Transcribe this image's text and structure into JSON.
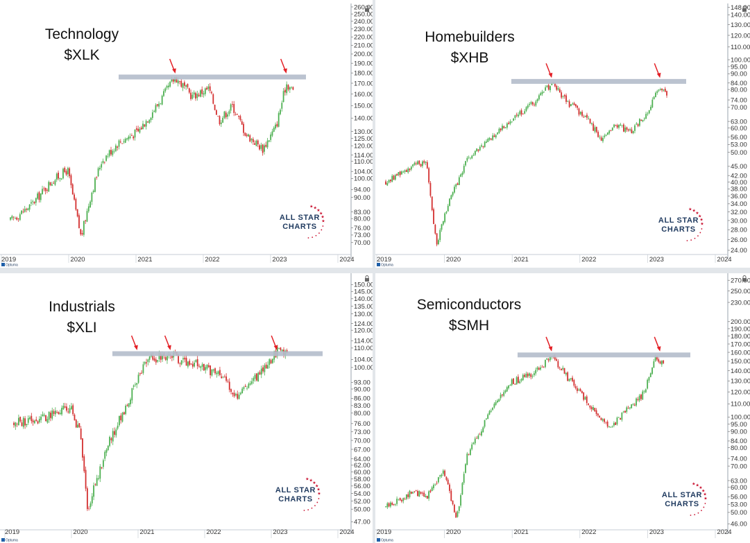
{
  "chart_data": [
    {
      "type": "candlestick",
      "title": "Technology",
      "subtitle": "$XLK",
      "x_ticks": [
        "2019",
        "2020",
        "2021",
        "2022",
        "2023",
        "2024"
      ],
      "y_scale": "log",
      "ylim": [
        66,
        262
      ],
      "y_ticks": [
        "260.00",
        "250.00",
        "240.00",
        "230.00",
        "220.00",
        "210.00",
        "200.00",
        "190.00",
        "180.00",
        "170.00",
        "160.00",
        "150.00",
        "140.00",
        "130.00",
        "125.00",
        "120.00",
        "114.00",
        "110.00",
        "104.00",
        "100.00",
        "94.00",
        "90.00",
        "83.00",
        "80.00",
        "76.00",
        "73.00",
        "70.00"
      ],
      "resistance_level": 176,
      "arrows_at": [
        2021.45,
        2023.1
      ],
      "approx_closes": {
        "x": [
          2019.0,
          2019.3,
          2019.6,
          2019.85,
          2020.05,
          2020.2,
          2020.35,
          2020.6,
          2020.9,
          2021.2,
          2021.45,
          2021.7,
          2021.95,
          2022.1,
          2022.3,
          2022.5,
          2022.75,
          2022.95,
          2023.1,
          2023.2
        ],
        "y": [
          79,
          86,
          98,
          105,
          72,
          92,
          110,
          122,
          130,
          152,
          176,
          158,
          165,
          138,
          150,
          128,
          118,
          134,
          170,
          163
        ]
      },
      "watermark": [
        "ALL STAR",
        "CHARTS"
      ],
      "source": "Optuma"
    },
    {
      "type": "candlestick",
      "title": "Homebuilders",
      "subtitle": "$XHB",
      "x_ticks": [
        "2019",
        "2020",
        "2021",
        "2022",
        "2023",
        "2024"
      ],
      "y_scale": "log",
      "ylim": [
        23.5,
        150
      ],
      "y_ticks": [
        "148.00",
        "140.00",
        "130.00",
        "120.00",
        "110.00",
        "100.00",
        "95.00",
        "90.00",
        "84.00",
        "80.00",
        "74.00",
        "70.00",
        "63.00",
        "60.00",
        "56.00",
        "53.00",
        "50.00",
        "45.00",
        "42.00",
        "40.00",
        "38.00",
        "36.00",
        "34.00",
        "32.00",
        "30.00",
        "28.00",
        "26.00",
        "24.00"
      ],
      "resistance_level": 85,
      "arrows_at": [
        2021.45,
        2023.05
      ],
      "approx_closes": {
        "x": [
          2019.0,
          2019.3,
          2019.6,
          2019.65,
          2019.75,
          2019.9,
          2020.2,
          2020.6,
          2020.9,
          2021.2,
          2021.45,
          2021.7,
          2021.95,
          2022.2,
          2022.4,
          2022.6,
          2022.85,
          2023.05,
          2023.15
        ],
        "y": [
          40,
          44,
          47,
          38,
          25,
          33,
          47,
          57,
          65,
          73,
          84,
          72,
          65,
          55,
          62,
          58,
          66,
          82,
          77
        ]
      },
      "watermark": [
        "ALL STAR",
        "CHARTS"
      ],
      "source": "Optuma"
    },
    {
      "type": "candlestick",
      "title": "Industrials",
      "subtitle": "$XLI",
      "x_ticks": [
        "2019",
        "2020",
        "2021",
        "2022",
        "2023",
        "2024"
      ],
      "y_scale": "log",
      "ylim": [
        45.5,
        157
      ],
      "y_ticks": [
        "150.00",
        "145.00",
        "140.00",
        "135.00",
        "130.00",
        "124.00",
        "120.00",
        "114.00",
        "110.00",
        "104.00",
        "100.00",
        "93.00",
        "90.00",
        "86.00",
        "83.00",
        "80.00",
        "76.00",
        "73.00",
        "70.00",
        "67.00",
        "64.00",
        "62.00",
        "60.00",
        "58.00",
        "56.00",
        "54.00",
        "52.00",
        "50.00",
        "47.00"
      ],
      "resistance_level": 107,
      "arrows_at": [
        2020.85,
        2021.35,
        2022.95
      ],
      "approx_closes": {
        "x": [
          2019.0,
          2019.4,
          2019.85,
          2020.0,
          2020.1,
          2020.4,
          2020.8,
          2021.0,
          2021.35,
          2021.8,
          2022.1,
          2022.35,
          2022.5,
          2022.75,
          2022.95,
          2023.1
        ],
        "y": [
          76,
          78,
          82,
          72,
          50,
          68,
          90,
          104,
          106,
          101,
          96,
          87,
          92,
          99,
          108,
          106
        ]
      },
      "watermark": [
        "ALL STAR",
        "CHARTS"
      ],
      "source": "Optuma"
    },
    {
      "type": "candlestick",
      "title": "Semiconductors",
      "subtitle": "$SMH",
      "x_ticks": [
        "2019",
        "2020",
        "2021",
        "2022",
        "2023",
        "2024"
      ],
      "y_scale": "log",
      "ylim": [
        44.5,
        280
      ],
      "y_ticks": [
        "270.00",
        "250.00",
        "230.00",
        "200.00",
        "190.00",
        "180.00",
        "170.00",
        "160.00",
        "150.00",
        "140.00",
        "130.00",
        "120.00",
        "110.00",
        "100.00",
        "95.00",
        "90.00",
        "84.00",
        "80.00",
        "74.00",
        "70.00",
        "63.00",
        "60.00",
        "56.00",
        "53.00",
        "50.00",
        "46.00"
      ],
      "resistance_level": 157,
      "arrows_at": [
        2021.45,
        2023.05
      ],
      "approx_closes": {
        "x": [
          2019.0,
          2019.4,
          2019.6,
          2019.85,
          2020.05,
          2020.2,
          2020.5,
          2020.85,
          2021.2,
          2021.45,
          2021.75,
          2022.0,
          2022.3,
          2022.55,
          2022.8,
          2023.0,
          2023.1
        ],
        "y": [
          52,
          58,
          56,
          68,
          48,
          75,
          100,
          128,
          138,
          155,
          128,
          110,
          92,
          105,
          118,
          155,
          145
        ]
      },
      "watermark": [
        "ALL STAR",
        "CHARTS"
      ],
      "source": "Optuma"
    }
  ],
  "colors": {
    "up": "#4caf50",
    "down": "#d32f2f",
    "resistance_band": "#b4bccb",
    "arrow": "#e32026",
    "logo_text": "#1f3a5f",
    "logo_stars": "#c8102e"
  },
  "icons": {
    "source_mark": "optuma-icon",
    "watermark_decoration": "star-icon",
    "scale_lock": "lock-icon"
  }
}
